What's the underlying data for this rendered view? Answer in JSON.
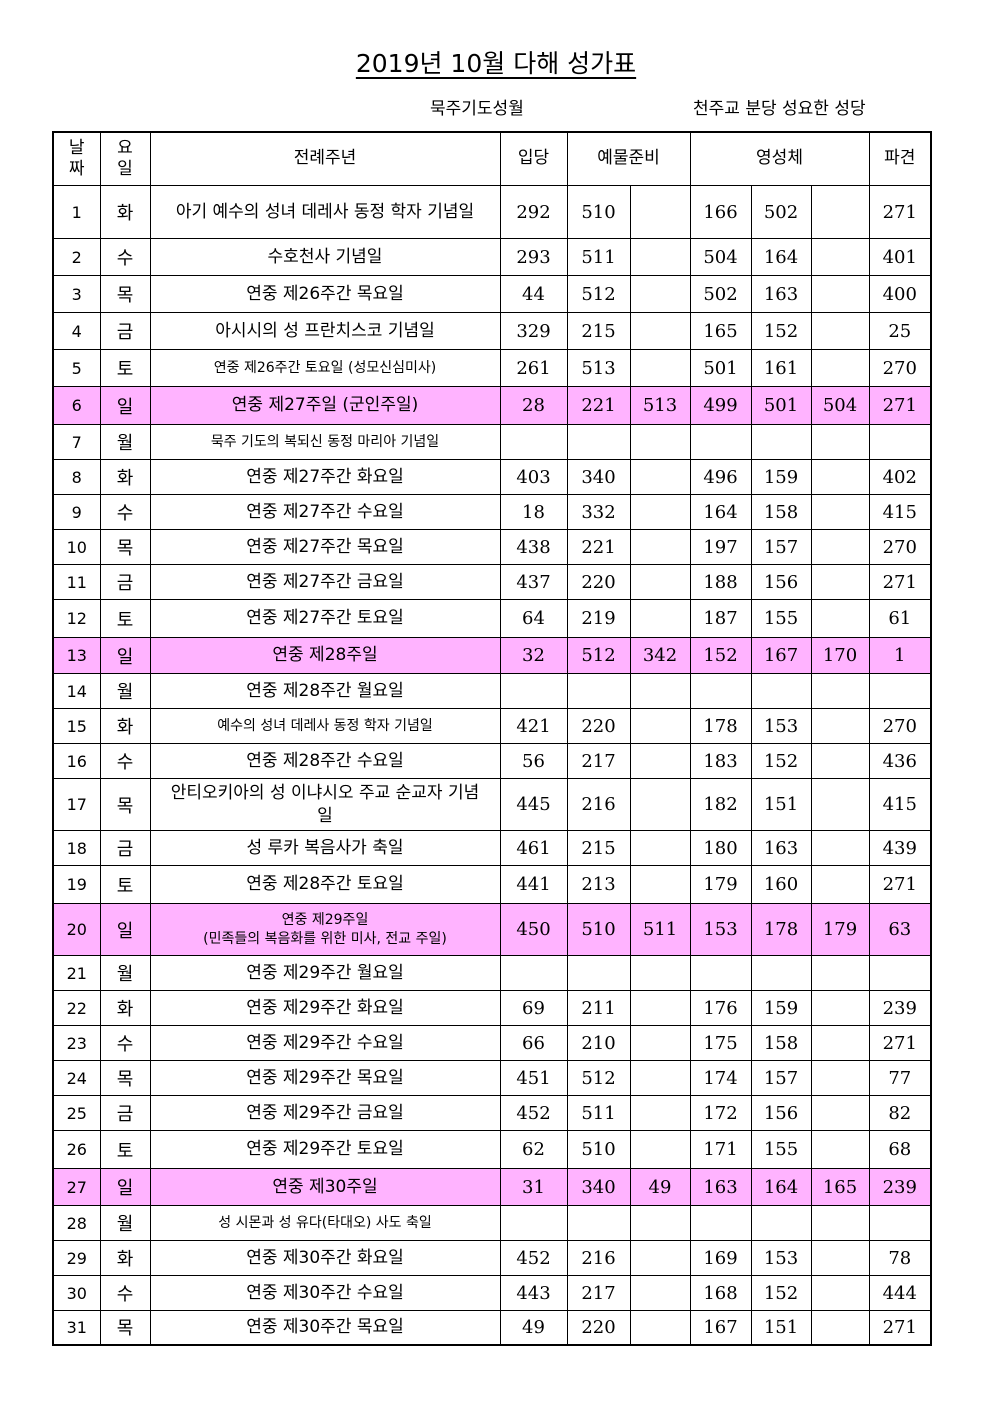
{
  "title": "2019년 10월 다해 성가표",
  "subtitle_left": "묵주기도성월",
  "subtitle_right": "천주교 분당 성요한 성당",
  "headers": {
    "date": "날\n짜",
    "weekday": "요\n일",
    "liturgy": "전례주년",
    "entrance": "입당",
    "offertory": "예물준비",
    "communion": "영성체",
    "dismissal": "파견"
  },
  "sunday_color": "#ffb3ff",
  "rows": [
    {
      "d": "1",
      "w": "화",
      "t": "아기 예수의 성녀 데레사 동정 학자 기념일",
      "e": "292",
      "o1": "510",
      "o2": "",
      "c1": "166",
      "c2": "502",
      "c3": "",
      "s": "271"
    },
    {
      "d": "2",
      "w": "수",
      "t": "수호천사 기념일",
      "e": "293",
      "o1": "511",
      "o2": "",
      "c1": "504",
      "c2": "164",
      "c3": "",
      "s": "401"
    },
    {
      "d": "3",
      "w": "목",
      "t": "연중 제26주간 목요일",
      "e": "44",
      "o1": "512",
      "o2": "",
      "c1": "502",
      "c2": "163",
      "c3": "",
      "s": "400"
    },
    {
      "d": "4",
      "w": "금",
      "t": "아시시의 성 프란치스코 기념일",
      "e": "329",
      "o1": "215",
      "o2": "",
      "c1": "165",
      "c2": "152",
      "c3": "",
      "s": "25"
    },
    {
      "d": "5",
      "w": "토",
      "t": "연중 제26주간 토요일 (성모신심미사)",
      "e": "261",
      "o1": "513",
      "o2": "",
      "c1": "501",
      "c2": "161",
      "c3": "",
      "s": "270"
    },
    {
      "d": "6",
      "w": "일",
      "t": "연중 제27주일 (군인주일)",
      "e": "28",
      "o1": "221",
      "o2": "513",
      "c1": "499",
      "c2": "501",
      "c3": "504",
      "s": "271"
    },
    {
      "d": "7",
      "w": "월",
      "t": "묵주 기도의 복되신 동정 마리아 기념일",
      "e": "",
      "o1": "",
      "o2": "",
      "c1": "",
      "c2": "",
      "c3": "",
      "s": ""
    },
    {
      "d": "8",
      "w": "화",
      "t": "연중 제27주간 화요일",
      "e": "403",
      "o1": "340",
      "o2": "",
      "c1": "496",
      "c2": "159",
      "c3": "",
      "s": "402"
    },
    {
      "d": "9",
      "w": "수",
      "t": "연중 제27주간 수요일",
      "e": "18",
      "o1": "332",
      "o2": "",
      "c1": "164",
      "c2": "158",
      "c3": "",
      "s": "415"
    },
    {
      "d": "10",
      "w": "목",
      "t": "연중 제27주간 목요일",
      "e": "438",
      "o1": "221",
      "o2": "",
      "c1": "197",
      "c2": "157",
      "c3": "",
      "s": "270"
    },
    {
      "d": "11",
      "w": "금",
      "t": "연중 제27주간 금요일",
      "e": "437",
      "o1": "220",
      "o2": "",
      "c1": "188",
      "c2": "156",
      "c3": "",
      "s": "271"
    },
    {
      "d": "12",
      "w": "토",
      "t": "연중 제27주간 토요일",
      "e": "64",
      "o1": "219",
      "o2": "",
      "c1": "187",
      "c2": "155",
      "c3": "",
      "s": "61"
    },
    {
      "d": "13",
      "w": "일",
      "t": "연중 제28주일",
      "e": "32",
      "o1": "512",
      "o2": "342",
      "c1": "152",
      "c2": "167",
      "c3": "170",
      "s": "1"
    },
    {
      "d": "14",
      "w": "월",
      "t": "연중 제28주간 월요일",
      "e": "",
      "o1": "",
      "o2": "",
      "c1": "",
      "c2": "",
      "c3": "",
      "s": ""
    },
    {
      "d": "15",
      "w": "화",
      "t": "예수의 성녀 데레사 동정 학자 기념일",
      "e": "421",
      "o1": "220",
      "o2": "",
      "c1": "178",
      "c2": "153",
      "c3": "",
      "s": "270"
    },
    {
      "d": "16",
      "w": "수",
      "t": "연중 제28주간 수요일",
      "e": "56",
      "o1": "217",
      "o2": "",
      "c1": "183",
      "c2": "152",
      "c3": "",
      "s": "436"
    },
    {
      "d": "17",
      "w": "목",
      "t": "안티오키아의 성 이냐시오 주교 순교자 기념일",
      "e": "445",
      "o1": "216",
      "o2": "",
      "c1": "182",
      "c2": "151",
      "c3": "",
      "s": "415"
    },
    {
      "d": "18",
      "w": "금",
      "t": "성 루카 복음사가 축일",
      "e": "461",
      "o1": "215",
      "o2": "",
      "c1": "180",
      "c2": "163",
      "c3": "",
      "s": "439"
    },
    {
      "d": "19",
      "w": "토",
      "t": "연중 제28주간 토요일",
      "e": "441",
      "o1": "213",
      "o2": "",
      "c1": "179",
      "c2": "160",
      "c3": "",
      "s": "271"
    },
    {
      "d": "20",
      "w": "일",
      "t": "연중 제29주일",
      "t2": "(민족들의 복음화를 위한 미사, 전교 주일)",
      "e": "450",
      "o1": "510",
      "o2": "511",
      "c1": "153",
      "c2": "178",
      "c3": "179",
      "s": "63"
    },
    {
      "d": "21",
      "w": "월",
      "t": "연중 제29주간 월요일",
      "e": "",
      "o1": "",
      "o2": "",
      "c1": "",
      "c2": "",
      "c3": "",
      "s": ""
    },
    {
      "d": "22",
      "w": "화",
      "t": "연중 제29주간 화요일",
      "e": "69",
      "o1": "211",
      "o2": "",
      "c1": "176",
      "c2": "159",
      "c3": "",
      "s": "239"
    },
    {
      "d": "23",
      "w": "수",
      "t": "연중 제29주간 수요일",
      "e": "66",
      "o1": "210",
      "o2": "",
      "c1": "175",
      "c2": "158",
      "c3": "",
      "s": "271"
    },
    {
      "d": "24",
      "w": "목",
      "t": "연중 제29주간 목요일",
      "e": "451",
      "o1": "512",
      "o2": "",
      "c1": "174",
      "c2": "157",
      "c3": "",
      "s": "77"
    },
    {
      "d": "25",
      "w": "금",
      "t": "연중 제29주간 금요일",
      "e": "452",
      "o1": "511",
      "o2": "",
      "c1": "172",
      "c2": "156",
      "c3": "",
      "s": "82"
    },
    {
      "d": "26",
      "w": "토",
      "t": "연중 제29주간 토요일",
      "e": "62",
      "o1": "510",
      "o2": "",
      "c1": "171",
      "c2": "155",
      "c3": "",
      "s": "68"
    },
    {
      "d": "27",
      "w": "일",
      "t": "연중 제30주일",
      "e": "31",
      "o1": "340",
      "o2": "49",
      "c1": "163",
      "c2": "164",
      "c3": "165",
      "s": "239"
    },
    {
      "d": "28",
      "w": "월",
      "t": "성 시몬과 성 유다(타대오) 사도 축일",
      "e": "",
      "o1": "",
      "o2": "",
      "c1": "",
      "c2": "",
      "c3": "",
      "s": ""
    },
    {
      "d": "29",
      "w": "화",
      "t": "연중 제30주간 화요일",
      "e": "452",
      "o1": "216",
      "o2": "",
      "c1": "169",
      "c2": "153",
      "c3": "",
      "s": "78"
    },
    {
      "d": "30",
      "w": "수",
      "t": "연중 제30주간 수요일",
      "e": "443",
      "o1": "217",
      "o2": "",
      "c1": "168",
      "c2": "152",
      "c3": "",
      "s": "444"
    },
    {
      "d": "31",
      "w": "목",
      "t": "연중 제30주간 목요일",
      "e": "49",
      "o1": "220",
      "o2": "",
      "c1": "167",
      "c2": "151",
      "c3": "",
      "s": "271"
    }
  ]
}
